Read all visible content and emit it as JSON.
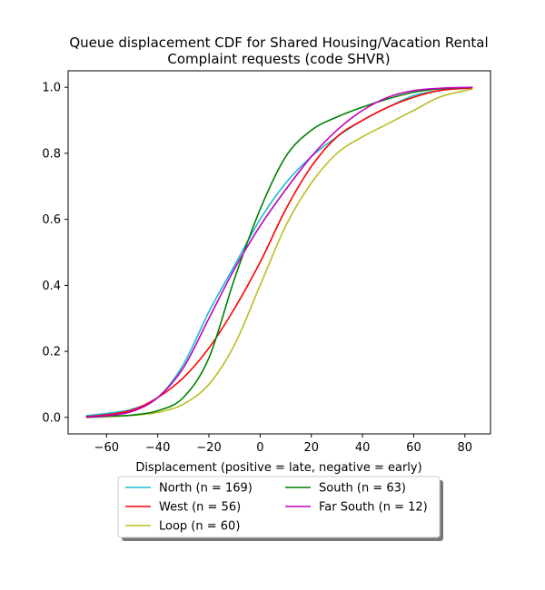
{
  "chart_data": {
    "type": "line",
    "title_lines": [
      "Queue displacement CDF for Shared Housing/Vacation Rental",
      "Complaint  requests (code SHVR)"
    ],
    "xlabel": "Displacement (positive = late, negative = early)",
    "ylabel": "",
    "xlim": [
      -75,
      90
    ],
    "ylim": [
      -0.05,
      1.05
    ],
    "xticks": [
      -60,
      -40,
      -20,
      0,
      20,
      40,
      60,
      80
    ],
    "xtick_labels": [
      "−60",
      "−40",
      "−20",
      "0",
      "20",
      "40",
      "60",
      "80"
    ],
    "yticks": [
      0.0,
      0.2,
      0.4,
      0.6,
      0.8,
      1.0
    ],
    "ytick_labels": [
      "0.0",
      "0.2",
      "0.4",
      "0.6",
      "0.8",
      "1.0"
    ],
    "grid": false,
    "legend_placement": "below plot, two columns, with shadow",
    "series": [
      {
        "name": "North (n = 169)",
        "color": "#17becf",
        "x": [
          -68,
          -60,
          -50,
          -40,
          -30,
          -20,
          -10,
          0,
          10,
          20,
          30,
          40,
          50,
          60,
          70,
          83
        ],
        "y": [
          0.005,
          0.012,
          0.025,
          0.06,
          0.16,
          0.32,
          0.46,
          0.6,
          0.71,
          0.79,
          0.85,
          0.9,
          0.94,
          0.975,
          0.99,
          1.0
        ]
      },
      {
        "name": "West (n = 56)",
        "color": "#ff0000",
        "x": [
          -68,
          -60,
          -50,
          -40,
          -30,
          -20,
          -10,
          0,
          10,
          20,
          30,
          40,
          50,
          60,
          70,
          83
        ],
        "y": [
          0.002,
          0.008,
          0.022,
          0.06,
          0.12,
          0.21,
          0.33,
          0.47,
          0.63,
          0.76,
          0.85,
          0.9,
          0.94,
          0.97,
          0.99,
          0.998
        ]
      },
      {
        "name": "Loop (n = 60)",
        "color": "#bcbd22",
        "x": [
          -68,
          -60,
          -50,
          -40,
          -30,
          -20,
          -10,
          0,
          10,
          20,
          30,
          40,
          50,
          60,
          70,
          83
        ],
        "y": [
          0.0,
          0.002,
          0.006,
          0.015,
          0.04,
          0.1,
          0.22,
          0.4,
          0.58,
          0.71,
          0.8,
          0.85,
          0.89,
          0.93,
          0.97,
          0.995
        ]
      },
      {
        "name": "South (n = 63)",
        "color": "#008000",
        "x": [
          -68,
          -60,
          -50,
          -40,
          -30,
          -20,
          -10,
          0,
          10,
          20,
          30,
          40,
          50,
          60,
          70,
          83
        ],
        "y": [
          0.0,
          0.003,
          0.007,
          0.02,
          0.06,
          0.18,
          0.42,
          0.63,
          0.79,
          0.87,
          0.91,
          0.94,
          0.965,
          0.985,
          0.995,
          1.0
        ]
      },
      {
        "name": "Far South (n = 12)",
        "color": "#bf00bf",
        "x": [
          -68,
          -60,
          -50,
          -40,
          -30,
          -20,
          -10,
          0,
          10,
          20,
          30,
          40,
          50,
          60,
          70,
          83
        ],
        "y": [
          0.001,
          0.005,
          0.018,
          0.06,
          0.15,
          0.3,
          0.45,
          0.58,
          0.69,
          0.79,
          0.87,
          0.93,
          0.97,
          0.99,
          0.997,
          1.0
        ]
      }
    ]
  }
}
